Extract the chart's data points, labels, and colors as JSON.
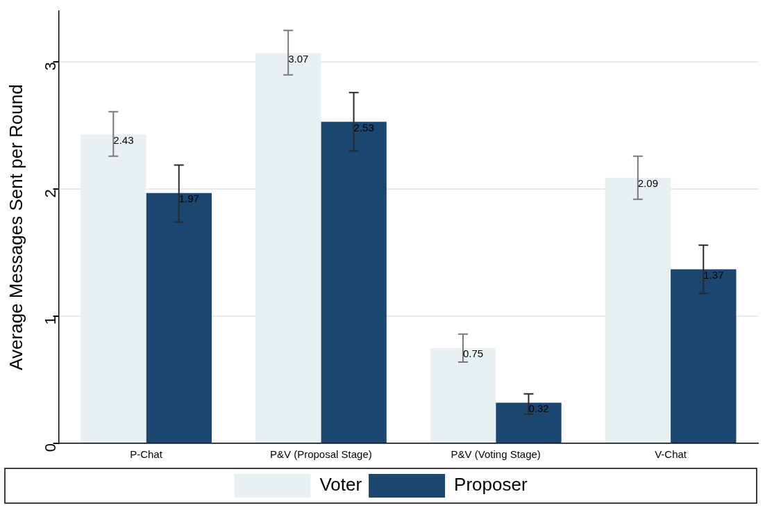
{
  "chart_data": {
    "type": "bar",
    "ylabel": "Average Messages Sent per Round",
    "categories": [
      "P-Chat",
      "P&V (Proposal Stage)",
      "P&V (Voting Stage)",
      "V-Chat"
    ],
    "series": [
      {
        "name": "Voter",
        "color": "#e8f0f2",
        "values": [
          2.43,
          3.07,
          0.75,
          2.09
        ],
        "errors": [
          [
            2.26,
            2.61
          ],
          [
            2.9,
            3.25
          ],
          [
            0.64,
            0.86
          ],
          [
            1.92,
            2.26
          ]
        ]
      },
      {
        "name": "Proposer",
        "color": "#1b4670",
        "values": [
          1.97,
          2.53,
          0.32,
          1.37
        ],
        "errors": [
          [
            1.74,
            2.19
          ],
          [
            2.3,
            2.76
          ],
          [
            0.23,
            0.39
          ],
          [
            1.18,
            1.56
          ]
        ]
      }
    ],
    "ylim": [
      0,
      3.4
    ],
    "yticks": [
      0,
      1,
      2,
      3
    ],
    "grid": "y",
    "legend": "bottom",
    "data_labels": true
  }
}
